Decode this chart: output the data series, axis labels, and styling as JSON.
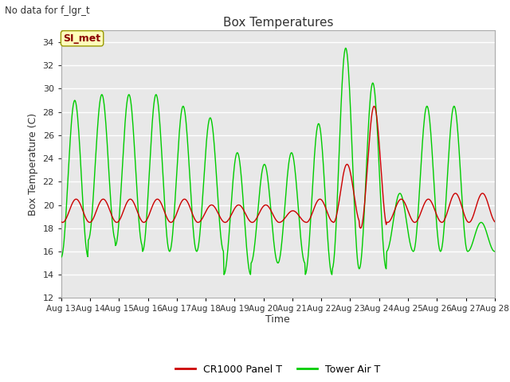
{
  "title": "Box Temperatures",
  "ylabel": "Box Temperature (C)",
  "xlabel": "Time",
  "top_left_text": "No data for f_lgr_t",
  "annotation_text": "SI_met",
  "ylim": [
    12,
    35
  ],
  "yticks": [
    12,
    14,
    16,
    18,
    20,
    22,
    24,
    26,
    28,
    30,
    32,
    34
  ],
  "xtick_labels": [
    "Aug 13",
    "Aug 14",
    "Aug 15",
    "Aug 16",
    "Aug 17",
    "Aug 18",
    "Aug 19",
    "Aug 20",
    "Aug 21",
    "Aug 22",
    "Aug 23",
    "Aug 24",
    "Aug 25",
    "Aug 26",
    "Aug 27",
    "Aug 28"
  ],
  "fig_bg_color": "#ffffff",
  "plot_bg_color": "#e8e8e8",
  "grid_color": "#ffffff",
  "line_red": "#cc0000",
  "line_green": "#00cc00",
  "legend_labels": [
    "CR1000 Panel T",
    "Tower Air T"
  ],
  "legend_colors": [
    "#cc0000",
    "#00cc00"
  ],
  "day_peaks_green": [
    29.0,
    29.5,
    29.5,
    29.5,
    28.5,
    27.5,
    24.5,
    23.5,
    24.5,
    27.0,
    33.5,
    30.5,
    21.0,
    28.5,
    28.5,
    18.5
  ],
  "day_lows_green": [
    15.5,
    17.0,
    16.5,
    16.0,
    16.0,
    16.0,
    14.0,
    15.0,
    15.0,
    14.0,
    14.5,
    14.5,
    16.0,
    16.0,
    16.0,
    16.0
  ],
  "day_peaks_red": [
    20.5,
    20.5,
    20.5,
    20.5,
    20.5,
    20.0,
    20.0,
    20.0,
    19.5,
    20.5,
    23.5,
    28.5,
    20.5,
    20.5,
    21.0,
    21.0
  ],
  "day_lows_red": [
    18.5,
    18.5,
    18.5,
    18.5,
    18.5,
    18.5,
    18.5,
    18.5,
    18.5,
    18.5,
    18.5,
    18.0,
    18.5,
    18.5,
    18.5,
    18.5
  ]
}
